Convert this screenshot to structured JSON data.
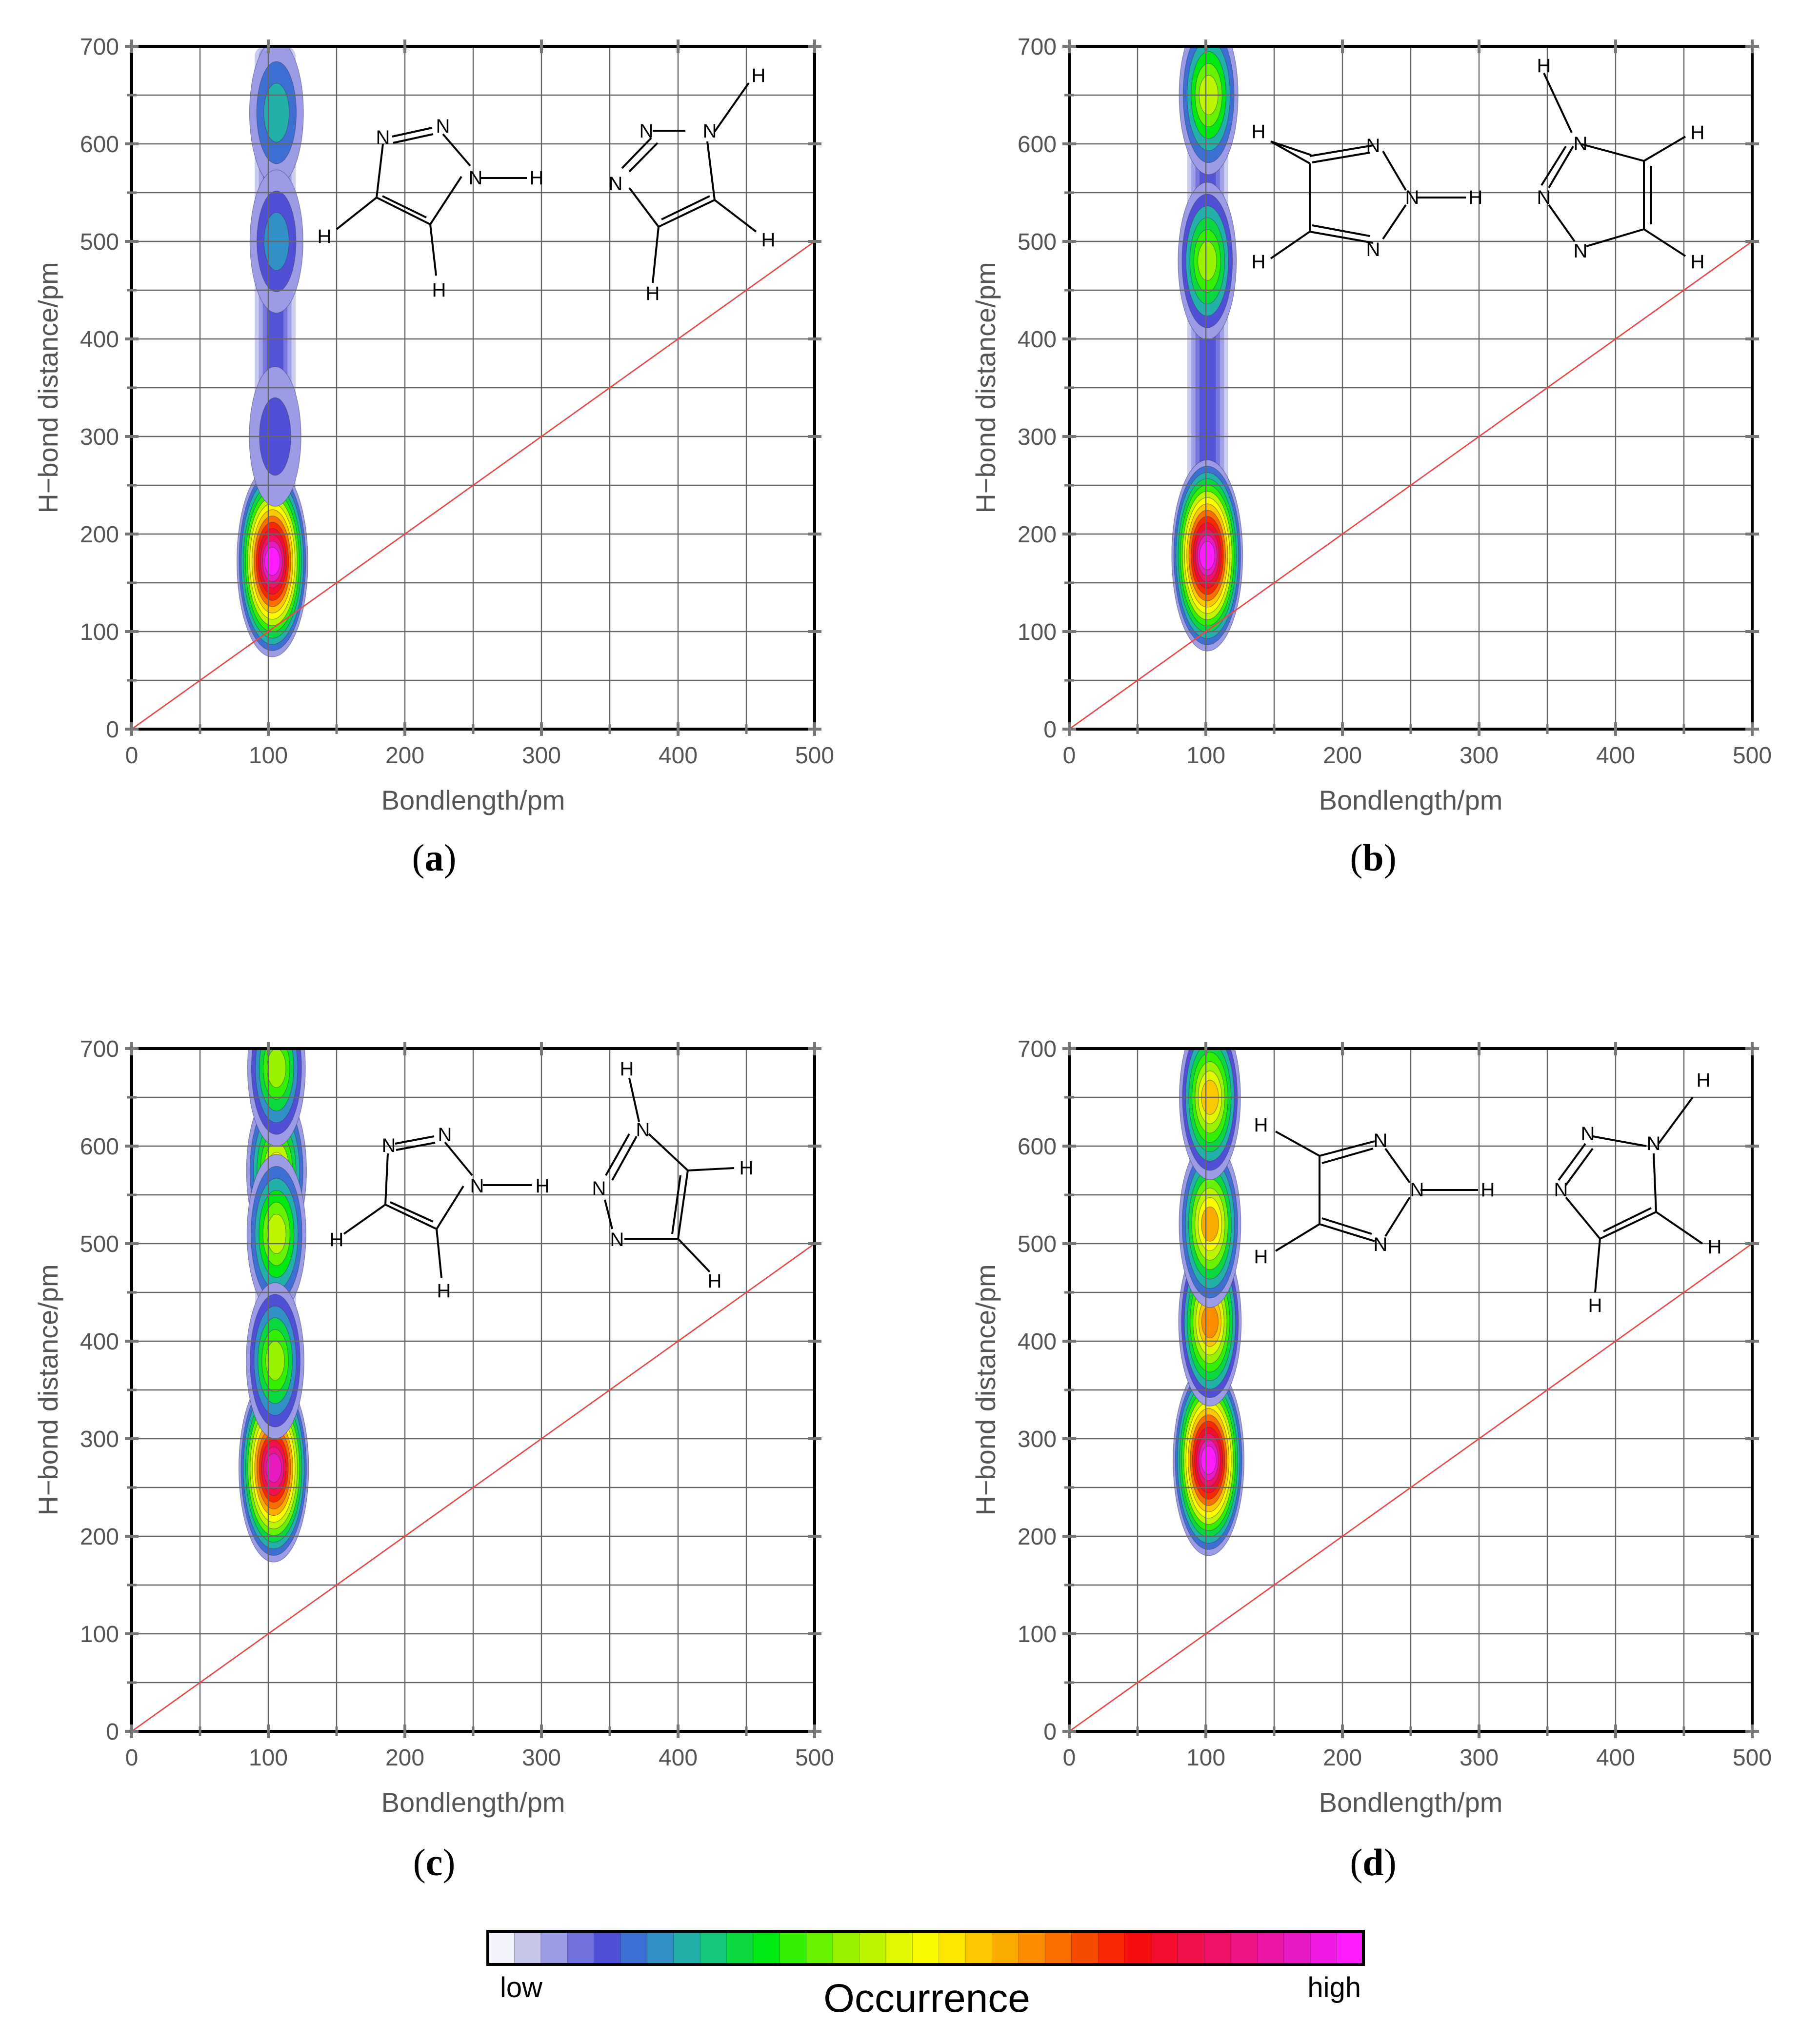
{
  "chart_data": [
    {
      "type": "heatmap",
      "panel_label": "a",
      "xlabel": "Bondlength/pm",
      "ylabel": "H−bond distance/pm",
      "xlim": [
        0,
        500
      ],
      "ylim": [
        0,
        700
      ],
      "xticks": [
        "0",
        "100",
        "200",
        "300",
        "400",
        "500"
      ],
      "yticks": [
        "0",
        "100",
        "200",
        "300",
        "400",
        "500",
        "600",
        "700"
      ],
      "grid": true,
      "reference_line": {
        "from": [
          0,
          0
        ],
        "to": [
          500,
          500
        ],
        "color": "#e84a4a"
      },
      "density_peaks": [
        {
          "x": 103,
          "y": 172,
          "level": 1.0
        },
        {
          "x": 106,
          "y": 632,
          "level": 0.22
        },
        {
          "x": 106,
          "y": 500,
          "level": 0.18
        },
        {
          "x": 105,
          "y": 300,
          "level": 0.12
        }
      ],
      "molecule_labels": [
        "N",
        "N",
        "N",
        "H",
        "H",
        "H",
        "N",
        "N",
        "N",
        "H",
        "H",
        "H"
      ]
    },
    {
      "type": "heatmap",
      "panel_label": "b",
      "xlabel": "Bondlength/pm",
      "ylabel": "H−bond distance/pm",
      "xlim": [
        0,
        500
      ],
      "ylim": [
        0,
        700
      ],
      "xticks": [
        "0",
        "100",
        "200",
        "300",
        "400",
        "500"
      ],
      "yticks": [
        "0",
        "100",
        "200",
        "300",
        "400",
        "500",
        "600",
        "700"
      ],
      "grid": true,
      "reference_line": {
        "from": [
          0,
          0
        ],
        "to": [
          500,
          500
        ],
        "color": "#e84a4a"
      },
      "density_peaks": [
        {
          "x": 101,
          "y": 178,
          "level": 1.0
        },
        {
          "x": 102,
          "y": 650,
          "level": 0.45
        },
        {
          "x": 101,
          "y": 480,
          "level": 0.42
        }
      ],
      "molecule_labels": [
        "H",
        "N",
        "N",
        "N",
        "H",
        "H",
        "H",
        "N",
        "N",
        "N",
        "H",
        "H"
      ]
    },
    {
      "type": "heatmap",
      "panel_label": "c",
      "xlabel": "Bondlength/pm",
      "ylabel": "H−bond distance/pm",
      "xlim": [
        0,
        500
      ],
      "ylim": [
        0,
        700
      ],
      "xticks": [
        "0",
        "100",
        "200",
        "300",
        "400",
        "500"
      ],
      "yticks": [
        "0",
        "100",
        "200",
        "300",
        "400",
        "500",
        "600",
        "700"
      ],
      "grid": true,
      "reference_line": {
        "from": [
          0,
          0
        ],
        "to": [
          500,
          500
        ],
        "color": "#e84a4a"
      },
      "density_peaks": [
        {
          "x": 104,
          "y": 270,
          "level": 0.95
        },
        {
          "x": 106,
          "y": 575,
          "level": 0.5
        },
        {
          "x": 106,
          "y": 510,
          "level": 0.45
        },
        {
          "x": 105,
          "y": 380,
          "level": 0.4
        },
        {
          "x": 106,
          "y": 680,
          "level": 0.4
        }
      ],
      "molecule_labels": [
        "N",
        "N",
        "N",
        "H",
        "H",
        "H",
        "H",
        "N",
        "N",
        "N",
        "H",
        "H"
      ]
    },
    {
      "type": "heatmap",
      "panel_label": "d",
      "xlabel": "Bondlength/pm",
      "ylabel": "H−bond distance/pm",
      "xlim": [
        0,
        500
      ],
      "ylim": [
        0,
        700
      ],
      "xticks": [
        "0",
        "100",
        "200",
        "300",
        "400",
        "500"
      ],
      "yticks": [
        "0",
        "100",
        "200",
        "300",
        "400",
        "500",
        "600",
        "700"
      ],
      "grid": true,
      "reference_line": {
        "from": [
          0,
          0
        ],
        "to": [
          500,
          500
        ],
        "color": "#e84a4a"
      },
      "density_peaks": [
        {
          "x": 102,
          "y": 278,
          "level": 1.0
        },
        {
          "x": 103,
          "y": 420,
          "level": 0.62
        },
        {
          "x": 103,
          "y": 520,
          "level": 0.58
        },
        {
          "x": 103,
          "y": 650,
          "level": 0.55
        }
      ],
      "molecule_labels": [
        "H",
        "N",
        "N",
        "N",
        "H",
        "H",
        "N",
        "N",
        "N",
        "H",
        "H",
        "H"
      ]
    }
  ],
  "colorbar": {
    "title": "Occurrence",
    "low_label": "low",
    "high_label": "high",
    "colors": [
      "#f2f2fb",
      "#c7c7ee",
      "#9c9ce6",
      "#7272de",
      "#5050d6",
      "#3e6fd2",
      "#3191c6",
      "#23b0a8",
      "#14c57a",
      "#0bd83f",
      "#00e812",
      "#33f000",
      "#66f200",
      "#99f200",
      "#bef500",
      "#dff800",
      "#fbfb00",
      "#fce600",
      "#fcc800",
      "#fbaa00",
      "#fb8c00",
      "#fa6e00",
      "#f94b00",
      "#f82800",
      "#f70f0f",
      "#f40c2c",
      "#f2104a",
      "#ef1168",
      "#ec1486",
      "#ea17a4",
      "#e81ac2",
      "#f21ae2",
      "#ff1dff"
    ]
  }
}
